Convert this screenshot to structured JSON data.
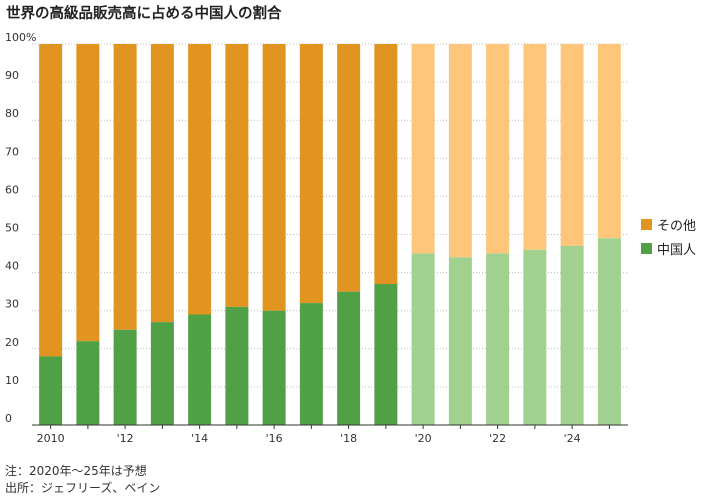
{
  "title": "世界の高級品販売高に占める中国人の割合",
  "notes": {
    "note": "注：2020年〜25年は予想",
    "source": "出所：ジェフリーズ、ベイン"
  },
  "colors": {
    "china": "#50a046",
    "china_forecast": "#a0d18e",
    "other": "#e29420",
    "other_forecast": "#fdc67a"
  },
  "chart_data": {
    "type": "stacked-bar",
    "title": "世界の高級品販売高に占める中国人の割合",
    "years": [
      2010,
      2011,
      2012,
      2013,
      2014,
      2015,
      2016,
      2017,
      2018,
      2019,
      2020,
      2021,
      2022,
      2023,
      2024,
      2025
    ],
    "forecast_from": 2020,
    "series": [
      {
        "name": "中国人",
        "values": [
          18,
          22,
          25,
          27,
          29,
          31,
          30,
          32,
          35,
          37,
          45,
          44,
          45,
          46,
          47,
          49
        ]
      },
      {
        "name": "その他",
        "values": [
          82,
          78,
          75,
          73,
          71,
          69,
          70,
          68,
          65,
          63,
          55,
          56,
          55,
          54,
          53,
          51
        ]
      }
    ],
    "x_tick_labels": [
      "2010",
      "",
      "'12",
      "",
      "'14",
      "",
      "'16",
      "",
      "'18",
      "",
      "'20",
      "",
      "'22",
      "",
      "'24",
      ""
    ],
    "y_ticks": [
      "0",
      "10",
      "20",
      "30",
      "40",
      "50",
      "60",
      "70",
      "80",
      "90",
      "100%"
    ],
    "ylim": [
      0,
      100
    ],
    "legend": [
      "その他",
      "中国人"
    ],
    "grid": true
  }
}
